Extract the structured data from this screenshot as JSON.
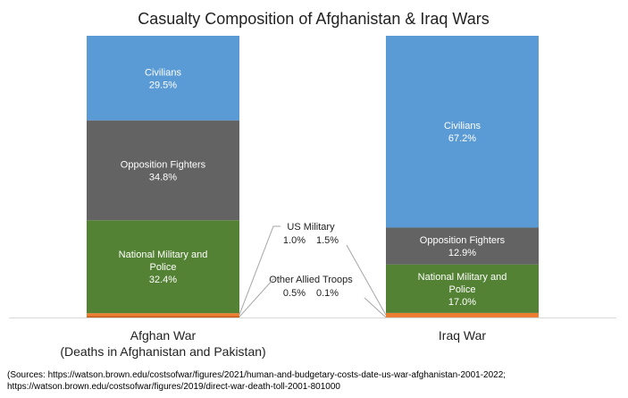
{
  "chart_data": {
    "type": "bar",
    "stacked": true,
    "normalized": true,
    "title": "Casualty Composition of Afghanistan & Iraq Wars",
    "categories": [
      "Afghan War",
      "Iraq War"
    ],
    "category_sublabels": [
      "(Deaths in Afghanistan and Pakistan)",
      ""
    ],
    "series": [
      {
        "name": "Other Allied Troops",
        "values": [
          0.5,
          0.1
        ],
        "color": "#c55a11"
      },
      {
        "name": "US Military",
        "values": [
          1.0,
          1.5
        ],
        "color": "#ed7d31"
      },
      {
        "name": "National Military and Police",
        "values": [
          32.4,
          17.0
        ],
        "color": "#548235"
      },
      {
        "name": "Opposition Fighters",
        "values": [
          34.8,
          12.9
        ],
        "color": "#636363"
      },
      {
        "name": "Civilians",
        "values": [
          29.5,
          67.2
        ],
        "color": "#5b9bd5"
      }
    ],
    "segment_labels": [
      [
        null,
        null,
        [
          "National Military and",
          "Police",
          "32.4%"
        ],
        [
          "Opposition Fighters",
          "34.8%"
        ],
        [
          "Civilians",
          "29.5%"
        ]
      ],
      [
        null,
        null,
        [
          "National Military and",
          "Police",
          "17.0%"
        ],
        [
          "Opposition Fighters",
          "12.9%"
        ],
        [
          "Civilians",
          "67.2%"
        ]
      ]
    ],
    "callouts": [
      {
        "series": "US Military",
        "label": "US Military",
        "values": [
          "1.0%",
          "1.5%"
        ]
      },
      {
        "series": "Other Allied Troops",
        "label": "Other Allied Troops",
        "values": [
          "0.5%",
          "0.1%"
        ]
      }
    ],
    "ylim": [
      0,
      100
    ],
    "grid": false,
    "legend": "none"
  },
  "sources": {
    "line1": "(Sources: https://watson.brown.edu/costsofwar/figures/2021/human-and-budgetary-costs-date-us-war-afghanistan-2001-2022;",
    "line2": "https://watson.brown.edu/costsofwar/figures/2019/direct-war-death-toll-2001-801000"
  }
}
